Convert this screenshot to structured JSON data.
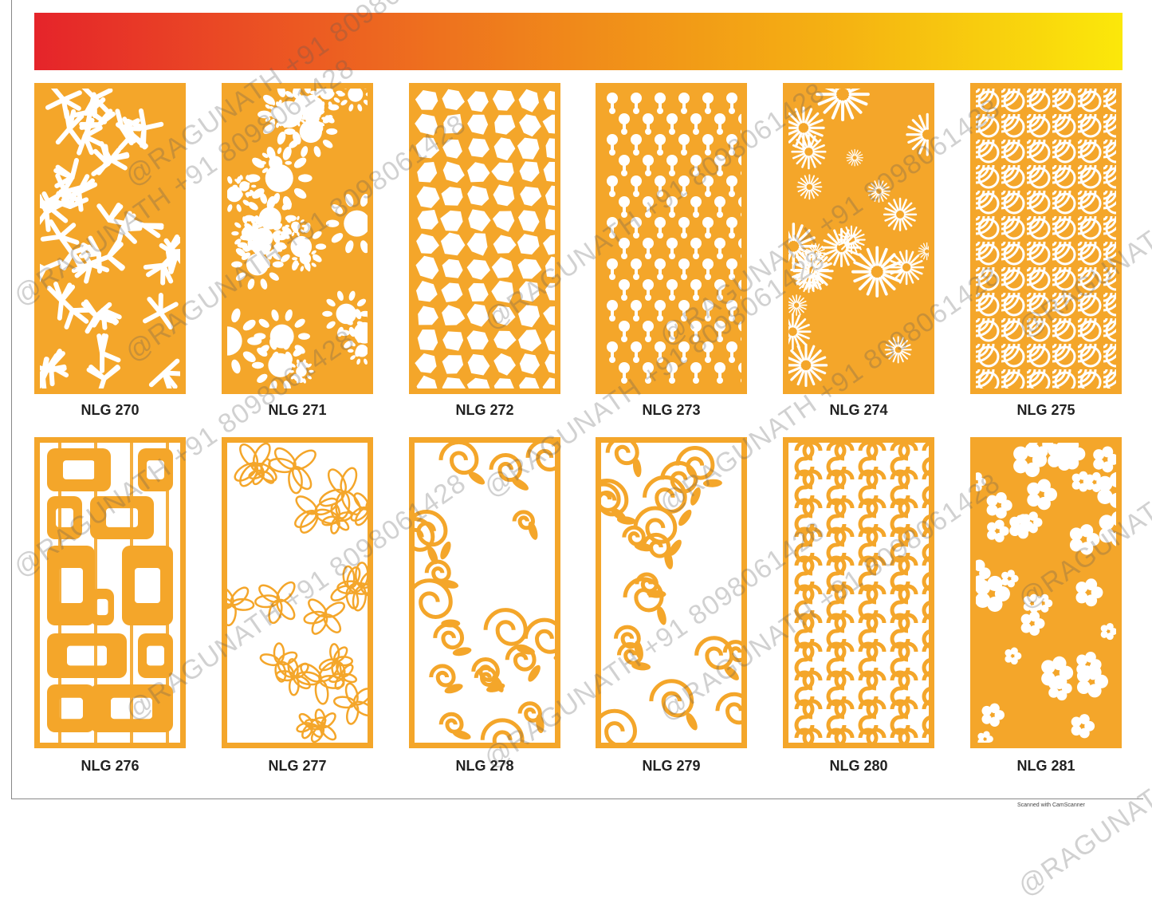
{
  "colors": {
    "panel": "#F4A62A",
    "cutout": "#FFFFFF",
    "label": "#222222"
  },
  "products": [
    {
      "code": "NLG 270"
    },
    {
      "code": "NLG 271"
    },
    {
      "code": "NLG 272"
    },
    {
      "code": "NLG 273"
    },
    {
      "code": "NLG 274"
    },
    {
      "code": "NLG 275"
    },
    {
      "code": "NLG 276"
    },
    {
      "code": "NLG 277"
    },
    {
      "code": "NLG 278"
    },
    {
      "code": "NLG 279"
    },
    {
      "code": "NLG 280"
    },
    {
      "code": "NLG 281"
    }
  ],
  "watermark": {
    "text": "@RAGUNATH +91 8098061428"
  },
  "footer": {
    "scanner_note": "Scanned with CamScanner"
  }
}
